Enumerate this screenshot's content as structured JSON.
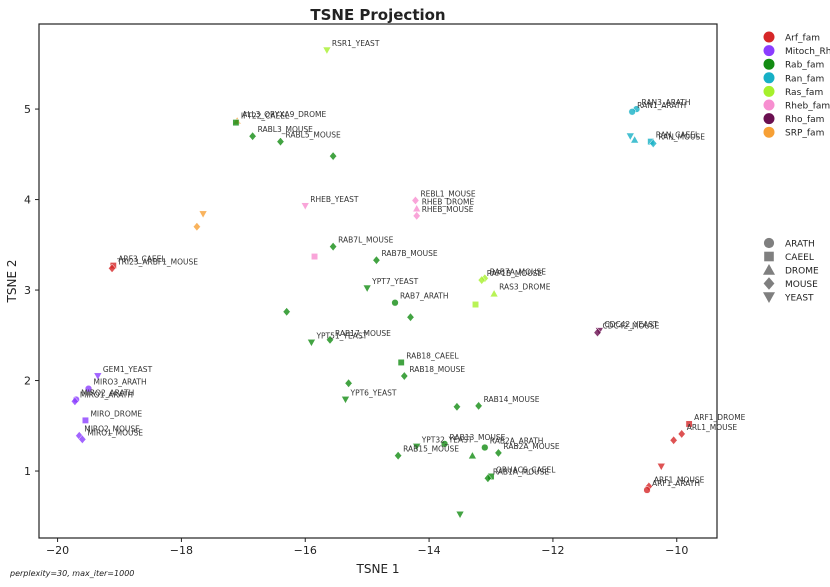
{
  "chart_data": {
    "type": "scatter",
    "title": "TSNE Projection",
    "xlabel": "TSNE 1",
    "ylabel": "TSNE 2",
    "xlim": [
      -20.3,
      -9.35
    ],
    "ylim": [
      0.26,
      5.94
    ],
    "xticks": [
      -20,
      -18,
      -16,
      -14,
      -12,
      -10
    ],
    "yticks": [
      1,
      2,
      3,
      4,
      5
    ],
    "grid": false,
    "legend_families_placement": "upper right, outside plot",
    "legend_species_placement": "right, outside plot",
    "families": [
      {
        "name": "Arf_fam",
        "color": "#d62728"
      },
      {
        "name": "Mitoch_Rho",
        "color": "#8b3dff"
      },
      {
        "name": "Rab_fam",
        "color": "#138c13"
      },
      {
        "name": "Ran_fam",
        "color": "#17b0c6"
      },
      {
        "name": "Ras_fam",
        "color": "#a6f02c"
      },
      {
        "name": "Rheb_fam",
        "color": "#f78fd0"
      },
      {
        "name": "Rho_fam",
        "color": "#6a0f50"
      },
      {
        "name": "SRP_fam",
        "color": "#f7a035"
      }
    ],
    "species": [
      {
        "name": "ARATH",
        "marker": "circle"
      },
      {
        "name": "CAEEL",
        "marker": "square"
      },
      {
        "name": "DROME",
        "marker": "triangle-up"
      },
      {
        "name": "MOUSE",
        "marker": "diamond"
      },
      {
        "name": "YEAST",
        "marker": "triangle-down"
      }
    ],
    "points": [
      {
        "label": "RSR1_YEAST",
        "x": -15.65,
        "y": 5.65,
        "family": "Ras_fam",
        "species": "YEAST"
      },
      {
        "label": "RAN3_ARATH",
        "x": -10.65,
        "y": 5.0,
        "family": "Ran_fam",
        "species": "ARATH"
      },
      {
        "label": "RAN1_ARATH",
        "x": -10.72,
        "y": 4.97,
        "family": "Ran_fam",
        "species": "ARATH",
        "show_label": true
      },
      {
        "label": "RAN_CAEEL",
        "x": -10.42,
        "y": 4.64,
        "family": "Ran_fam",
        "species": "CAEEL"
      },
      {
        "label": "RAN_MOUSE",
        "x": -10.38,
        "y": 4.62,
        "family": "Ran_fam",
        "species": "MOUSE"
      },
      {
        "label": "",
        "x": -10.75,
        "y": 4.7,
        "family": "Ran_fam",
        "species": "YEAST"
      },
      {
        "label": "",
        "x": -10.68,
        "y": 4.66,
        "family": "Ran_fam",
        "species": "DROME"
      },
      {
        "label": "ALL3_ORYXA9_DROME",
        "x": -17.1,
        "y": 4.87,
        "family": "SRP_fam",
        "species": "DROME"
      },
      {
        "label": "IFT22_CAEEL",
        "x": -17.12,
        "y": 4.85,
        "family": "Rab_fam",
        "species": "CAEEL"
      },
      {
        "label": "RABL3_MOUSE",
        "x": -16.85,
        "y": 4.7,
        "family": "Rab_fam",
        "species": "MOUSE"
      },
      {
        "label": "RABL5_MOUSE",
        "x": -16.4,
        "y": 4.64,
        "family": "Rab_fam",
        "species": "MOUSE"
      },
      {
        "label": "",
        "x": -15.55,
        "y": 4.48,
        "family": "Rab_fam",
        "species": "MOUSE"
      },
      {
        "label": "RHEB_YEAST",
        "x": -16.0,
        "y": 3.93,
        "family": "Rheb_fam",
        "species": "YEAST"
      },
      {
        "label": "REBL1_MOUSE",
        "x": -14.22,
        "y": 3.99,
        "family": "Rheb_fam",
        "species": "MOUSE"
      },
      {
        "label": "RHEB_DROME",
        "x": -14.2,
        "y": 3.9,
        "family": "Rheb_fam",
        "species": "DROME"
      },
      {
        "label": "RHEB_MOUSE",
        "x": -14.2,
        "y": 3.82,
        "family": "Rheb_fam",
        "species": "MOUSE"
      },
      {
        "label": "",
        "x": -17.75,
        "y": 3.7,
        "family": "SRP_fam",
        "species": "MOUSE"
      },
      {
        "label": "",
        "x": -17.65,
        "y": 3.84,
        "family": "SRP_fam",
        "species": "YEAST"
      },
      {
        "label": "RAB7L_MOUSE",
        "x": -15.55,
        "y": 3.48,
        "family": "Rab_fam",
        "species": "MOUSE"
      },
      {
        "label": "RAB7B_MOUSE",
        "x": -14.85,
        "y": 3.33,
        "family": "Rab_fam",
        "species": "MOUSE"
      },
      {
        "label": "",
        "x": -15.85,
        "y": 3.37,
        "family": "Rheb_fam",
        "species": "CAEEL"
      },
      {
        "label": "ARF3_CAEEL",
        "x": -19.1,
        "y": 3.27,
        "family": "Arf_fam",
        "species": "CAEEL"
      },
      {
        "label": "TRI23_ARBF1_MOUSE",
        "x": -19.12,
        "y": 3.24,
        "family": "Arf_fam",
        "species": "MOUSE"
      },
      {
        "label": "YPT7_YEAST",
        "x": -15.0,
        "y": 3.02,
        "family": "Rab_fam",
        "species": "YEAST"
      },
      {
        "label": "RAB7A_MOUSE",
        "x": -13.1,
        "y": 3.13,
        "family": "Ras_fam",
        "species": "MOUSE"
      },
      {
        "label": "RAP1B_MOUSE",
        "x": -13.15,
        "y": 3.11,
        "family": "Ras_fam",
        "species": "MOUSE"
      },
      {
        "label": "RAS3_DROME",
        "x": -12.95,
        "y": 2.96,
        "family": "Ras_fam",
        "species": "DROME"
      },
      {
        "label": "",
        "x": -13.25,
        "y": 2.84,
        "family": "Ras_fam",
        "species": "CAEEL"
      },
      {
        "label": "RAB7_ARATH",
        "x": -14.55,
        "y": 2.86,
        "family": "Rab_fam",
        "species": "ARATH"
      },
      {
        "label": "",
        "x": -14.3,
        "y": 2.7,
        "family": "Rab_fam",
        "species": "MOUSE"
      },
      {
        "label": "",
        "x": -16.3,
        "y": 2.76,
        "family": "Rab_fam",
        "species": "MOUSE"
      },
      {
        "label": "CDC42_YEAST",
        "x": -11.25,
        "y": 2.55,
        "family": "Rho_fam",
        "species": "YEAST"
      },
      {
        "label": "CDC42_MOUSE",
        "x": -11.28,
        "y": 2.53,
        "family": "Rho_fam",
        "species": "MOUSE"
      },
      {
        "label": "YPT51_YEAST",
        "x": -15.9,
        "y": 2.42,
        "family": "Rab_fam",
        "species": "YEAST"
      },
      {
        "label": "RAB17_MOUSE",
        "x": -15.6,
        "y": 2.45,
        "family": "Rab_fam",
        "species": "MOUSE"
      },
      {
        "label": "RAB18_CAEEL",
        "x": -14.45,
        "y": 2.2,
        "family": "Rab_fam",
        "species": "CAEEL"
      },
      {
        "label": "RAB18_MOUSE",
        "x": -14.4,
        "y": 2.05,
        "family": "Rab_fam",
        "species": "MOUSE"
      },
      {
        "label": "YPT6_YEAST",
        "x": -15.35,
        "y": 1.79,
        "family": "Rab_fam",
        "species": "YEAST"
      },
      {
        "label": "",
        "x": -15.3,
        "y": 1.97,
        "family": "Rab_fam",
        "species": "MOUSE"
      },
      {
        "label": "GEM1_YEAST",
        "x": -19.35,
        "y": 2.05,
        "family": "Mitoch_Rho",
        "species": "YEAST"
      },
      {
        "label": "MIRO3_ARATH",
        "x": -19.5,
        "y": 1.91,
        "family": "Mitoch_Rho",
        "species": "ARATH"
      },
      {
        "label": "MIRO2_ARATH",
        "x": -19.7,
        "y": 1.79,
        "family": "Mitoch_Rho",
        "species": "ARATH"
      },
      {
        "label": "MIRO1_ARATH",
        "x": -19.72,
        "y": 1.77,
        "family": "Mitoch_Rho",
        "species": "MOUSE"
      },
      {
        "label": "MIRO_DROME",
        "x": -19.55,
        "y": 1.56,
        "family": "Mitoch_Rho",
        "species": "CAEEL"
      },
      {
        "label": "MIRO2_MOUSE",
        "x": -19.65,
        "y": 1.39,
        "family": "Mitoch_Rho",
        "species": "MOUSE"
      },
      {
        "label": "MIRO1_MOUSE",
        "x": -19.6,
        "y": 1.35,
        "family": "Mitoch_Rho",
        "species": "MOUSE"
      },
      {
        "label": "RAB14_MOUSE",
        "x": -13.2,
        "y": 1.72,
        "family": "Rab_fam",
        "species": "MOUSE"
      },
      {
        "label": "",
        "x": -13.55,
        "y": 1.71,
        "family": "Rab_fam",
        "species": "MOUSE"
      },
      {
        "label": "RAB13_MOUSE",
        "x": -13.75,
        "y": 1.3,
        "family": "Rab_fam",
        "species": "ARATH"
      },
      {
        "label": "YPT32_YEAST",
        "x": -14.2,
        "y": 1.27,
        "family": "Rab_fam",
        "species": "YEAST"
      },
      {
        "label": "RAB15_MOUSE",
        "x": -14.5,
        "y": 1.17,
        "family": "Rab_fam",
        "species": "MOUSE"
      },
      {
        "label": "RAB2A_ARATH",
        "x": -13.1,
        "y": 1.26,
        "family": "Rab_fam",
        "species": "ARATH"
      },
      {
        "label": "RAB2A_MOUSE",
        "x": -12.88,
        "y": 1.2,
        "family": "Rab_fam",
        "species": "MOUSE"
      },
      {
        "label": "",
        "x": -13.3,
        "y": 1.17,
        "family": "Rab_fam",
        "species": "DROME"
      },
      {
        "label": "ORUACS_CAEEL",
        "x": -13.0,
        "y": 0.94,
        "family": "Rab_fam",
        "species": "CAEEL"
      },
      {
        "label": "RAB1A_MOUSE",
        "x": -13.05,
        "y": 0.92,
        "family": "Rab_fam",
        "species": "MOUSE"
      },
      {
        "label": "",
        "x": -13.5,
        "y": 0.52,
        "family": "Rab_fam",
        "species": "YEAST"
      },
      {
        "label": "ARF1_DROME",
        "x": -9.8,
        "y": 1.52,
        "family": "Arf_fam",
        "species": "CAEEL"
      },
      {
        "label": "ARL1_MOUSE",
        "x": -9.92,
        "y": 1.41,
        "family": "Arf_fam",
        "species": "MOUSE"
      },
      {
        "label": "",
        "x": -10.05,
        "y": 1.34,
        "family": "Arf_fam",
        "species": "MOUSE"
      },
      {
        "label": "",
        "x": -10.25,
        "y": 1.05,
        "family": "Arf_fam",
        "species": "YEAST"
      },
      {
        "label": "ARF1_MOUSE",
        "x": -10.45,
        "y": 0.83,
        "family": "Arf_fam",
        "species": "MOUSE"
      },
      {
        "label": "ARF1_ARATH",
        "x": -10.48,
        "y": 0.79,
        "family": "Arf_fam",
        "species": "ARATH"
      }
    ],
    "caption": "perplexity=30, max_iter=1000"
  }
}
